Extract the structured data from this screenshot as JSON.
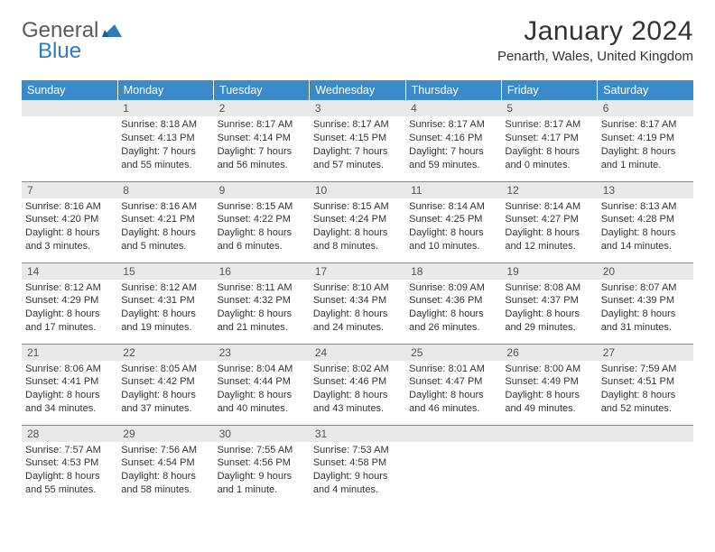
{
  "brand": {
    "general": "General",
    "blue": "Blue"
  },
  "title": "January 2024",
  "location": "Penarth, Wales, United Kingdom",
  "colors": {
    "header_bg": "#3b8bca",
    "header_text": "#ffffff",
    "daynum_bg": "#e9e9e9",
    "text": "#333333",
    "logo_gray": "#5a5a5a",
    "logo_blue": "#2f7bbf",
    "row_border": "#888888"
  },
  "weekdays": [
    "Sunday",
    "Monday",
    "Tuesday",
    "Wednesday",
    "Thursday",
    "Friday",
    "Saturday"
  ],
  "weeks": [
    [
      {
        "n": "",
        "sunrise": "",
        "sunset": "",
        "daylight": ""
      },
      {
        "n": "1",
        "sunrise": "Sunrise: 8:18 AM",
        "sunset": "Sunset: 4:13 PM",
        "daylight": "Daylight: 7 hours and 55 minutes."
      },
      {
        "n": "2",
        "sunrise": "Sunrise: 8:17 AM",
        "sunset": "Sunset: 4:14 PM",
        "daylight": "Daylight: 7 hours and 56 minutes."
      },
      {
        "n": "3",
        "sunrise": "Sunrise: 8:17 AM",
        "sunset": "Sunset: 4:15 PM",
        "daylight": "Daylight: 7 hours and 57 minutes."
      },
      {
        "n": "4",
        "sunrise": "Sunrise: 8:17 AM",
        "sunset": "Sunset: 4:16 PM",
        "daylight": "Daylight: 7 hours and 59 minutes."
      },
      {
        "n": "5",
        "sunrise": "Sunrise: 8:17 AM",
        "sunset": "Sunset: 4:17 PM",
        "daylight": "Daylight: 8 hours and 0 minutes."
      },
      {
        "n": "6",
        "sunrise": "Sunrise: 8:17 AM",
        "sunset": "Sunset: 4:19 PM",
        "daylight": "Daylight: 8 hours and 1 minute."
      }
    ],
    [
      {
        "n": "7",
        "sunrise": "Sunrise: 8:16 AM",
        "sunset": "Sunset: 4:20 PM",
        "daylight": "Daylight: 8 hours and 3 minutes."
      },
      {
        "n": "8",
        "sunrise": "Sunrise: 8:16 AM",
        "sunset": "Sunset: 4:21 PM",
        "daylight": "Daylight: 8 hours and 5 minutes."
      },
      {
        "n": "9",
        "sunrise": "Sunrise: 8:15 AM",
        "sunset": "Sunset: 4:22 PM",
        "daylight": "Daylight: 8 hours and 6 minutes."
      },
      {
        "n": "10",
        "sunrise": "Sunrise: 8:15 AM",
        "sunset": "Sunset: 4:24 PM",
        "daylight": "Daylight: 8 hours and 8 minutes."
      },
      {
        "n": "11",
        "sunrise": "Sunrise: 8:14 AM",
        "sunset": "Sunset: 4:25 PM",
        "daylight": "Daylight: 8 hours and 10 minutes."
      },
      {
        "n": "12",
        "sunrise": "Sunrise: 8:14 AM",
        "sunset": "Sunset: 4:27 PM",
        "daylight": "Daylight: 8 hours and 12 minutes."
      },
      {
        "n": "13",
        "sunrise": "Sunrise: 8:13 AM",
        "sunset": "Sunset: 4:28 PM",
        "daylight": "Daylight: 8 hours and 14 minutes."
      }
    ],
    [
      {
        "n": "14",
        "sunrise": "Sunrise: 8:12 AM",
        "sunset": "Sunset: 4:29 PM",
        "daylight": "Daylight: 8 hours and 17 minutes."
      },
      {
        "n": "15",
        "sunrise": "Sunrise: 8:12 AM",
        "sunset": "Sunset: 4:31 PM",
        "daylight": "Daylight: 8 hours and 19 minutes."
      },
      {
        "n": "16",
        "sunrise": "Sunrise: 8:11 AM",
        "sunset": "Sunset: 4:32 PM",
        "daylight": "Daylight: 8 hours and 21 minutes."
      },
      {
        "n": "17",
        "sunrise": "Sunrise: 8:10 AM",
        "sunset": "Sunset: 4:34 PM",
        "daylight": "Daylight: 8 hours and 24 minutes."
      },
      {
        "n": "18",
        "sunrise": "Sunrise: 8:09 AM",
        "sunset": "Sunset: 4:36 PM",
        "daylight": "Daylight: 8 hours and 26 minutes."
      },
      {
        "n": "19",
        "sunrise": "Sunrise: 8:08 AM",
        "sunset": "Sunset: 4:37 PM",
        "daylight": "Daylight: 8 hours and 29 minutes."
      },
      {
        "n": "20",
        "sunrise": "Sunrise: 8:07 AM",
        "sunset": "Sunset: 4:39 PM",
        "daylight": "Daylight: 8 hours and 31 minutes."
      }
    ],
    [
      {
        "n": "21",
        "sunrise": "Sunrise: 8:06 AM",
        "sunset": "Sunset: 4:41 PM",
        "daylight": "Daylight: 8 hours and 34 minutes."
      },
      {
        "n": "22",
        "sunrise": "Sunrise: 8:05 AM",
        "sunset": "Sunset: 4:42 PM",
        "daylight": "Daylight: 8 hours and 37 minutes."
      },
      {
        "n": "23",
        "sunrise": "Sunrise: 8:04 AM",
        "sunset": "Sunset: 4:44 PM",
        "daylight": "Daylight: 8 hours and 40 minutes."
      },
      {
        "n": "24",
        "sunrise": "Sunrise: 8:02 AM",
        "sunset": "Sunset: 4:46 PM",
        "daylight": "Daylight: 8 hours and 43 minutes."
      },
      {
        "n": "25",
        "sunrise": "Sunrise: 8:01 AM",
        "sunset": "Sunset: 4:47 PM",
        "daylight": "Daylight: 8 hours and 46 minutes."
      },
      {
        "n": "26",
        "sunrise": "Sunrise: 8:00 AM",
        "sunset": "Sunset: 4:49 PM",
        "daylight": "Daylight: 8 hours and 49 minutes."
      },
      {
        "n": "27",
        "sunrise": "Sunrise: 7:59 AM",
        "sunset": "Sunset: 4:51 PM",
        "daylight": "Daylight: 8 hours and 52 minutes."
      }
    ],
    [
      {
        "n": "28",
        "sunrise": "Sunrise: 7:57 AM",
        "sunset": "Sunset: 4:53 PM",
        "daylight": "Daylight: 8 hours and 55 minutes."
      },
      {
        "n": "29",
        "sunrise": "Sunrise: 7:56 AM",
        "sunset": "Sunset: 4:54 PM",
        "daylight": "Daylight: 8 hours and 58 minutes."
      },
      {
        "n": "30",
        "sunrise": "Sunrise: 7:55 AM",
        "sunset": "Sunset: 4:56 PM",
        "daylight": "Daylight: 9 hours and 1 minute."
      },
      {
        "n": "31",
        "sunrise": "Sunrise: 7:53 AM",
        "sunset": "Sunset: 4:58 PM",
        "daylight": "Daylight: 9 hours and 4 minutes."
      },
      {
        "n": "",
        "sunrise": "",
        "sunset": "",
        "daylight": ""
      },
      {
        "n": "",
        "sunrise": "",
        "sunset": "",
        "daylight": ""
      },
      {
        "n": "",
        "sunrise": "",
        "sunset": "",
        "daylight": ""
      }
    ]
  ]
}
